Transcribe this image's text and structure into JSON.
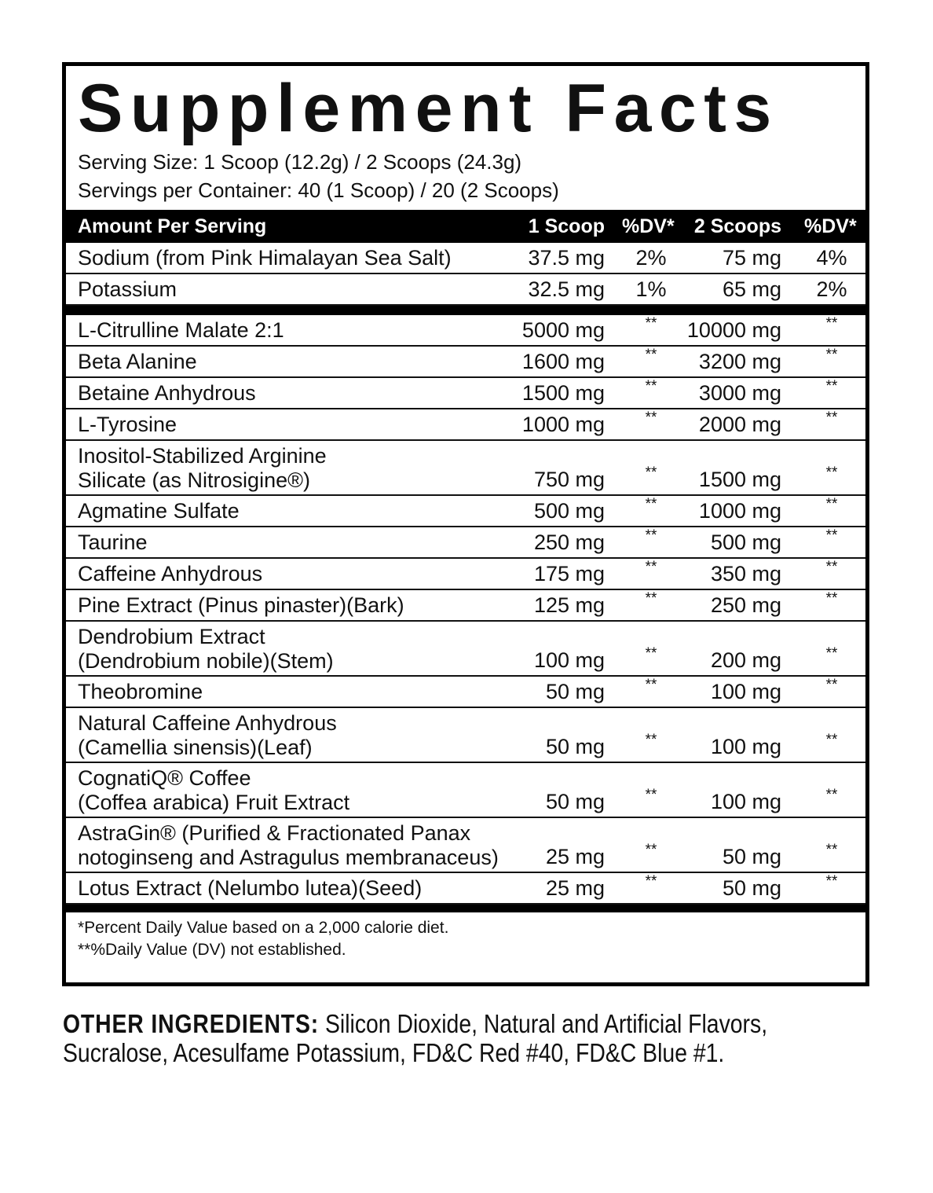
{
  "title": "Supplement Facts",
  "serving_size": "Serving Size: 1 Scoop (12.2g) / 2 Scoops (24.3g)",
  "servings_per_container": "Servings per Container: 40 (1 Scoop) / 20 (2 Scoops)",
  "header": {
    "amount": "Amount Per Serving",
    "col1": "1 Scoop",
    "dv1": "%DV*",
    "col2": "2 Scoops",
    "dv2": "%DV*"
  },
  "minerals": [
    {
      "name": [
        "Sodium (from Pink Himalayan Sea Salt)"
      ],
      "scoop1": "37.5 mg",
      "dv1": "2%",
      "scoop2": "75 mg",
      "dv2": "4%"
    },
    {
      "name": [
        "Potassium"
      ],
      "scoop1": "32.5 mg",
      "dv1": "1%",
      "scoop2": "65 mg",
      "dv2": "2%"
    }
  ],
  "ingredients": [
    {
      "name": [
        "L-Citrulline Malate 2:1"
      ],
      "scoop1": "5000 mg",
      "dv1": "**",
      "scoop2": "10000 mg",
      "dv2": "**"
    },
    {
      "name": [
        "Beta Alanine"
      ],
      "scoop1": "1600 mg",
      "dv1": "**",
      "scoop2": "3200 mg",
      "dv2": "**"
    },
    {
      "name": [
        "Betaine Anhydrous"
      ],
      "scoop1": "1500 mg",
      "dv1": "**",
      "scoop2": "3000 mg",
      "dv2": "**"
    },
    {
      "name": [
        "L-Tyrosine"
      ],
      "scoop1": "1000 mg",
      "dv1": "**",
      "scoop2": "2000 mg",
      "dv2": "**"
    },
    {
      "name": [
        "Inositol-Stabilized Arginine",
        "Silicate (as Nitrosigine®)"
      ],
      "scoop1": "750 mg",
      "dv1": "**",
      "scoop2": "1500 mg",
      "dv2": "**"
    },
    {
      "name": [
        "Agmatine Sulfate"
      ],
      "scoop1": "500 mg",
      "dv1": "**",
      "scoop2": "1000 mg",
      "dv2": "**"
    },
    {
      "name": [
        "Taurine"
      ],
      "scoop1": "250 mg",
      "dv1": "**",
      "scoop2": "500 mg",
      "dv2": "**"
    },
    {
      "name": [
        "Caffeine Anhydrous"
      ],
      "scoop1": "175 mg",
      "dv1": "**",
      "scoop2": "350 mg",
      "dv2": "**"
    },
    {
      "name": [
        "Pine Extract (Pinus pinaster)(Bark)"
      ],
      "scoop1": "125 mg",
      "dv1": "**",
      "scoop2": "250 mg",
      "dv2": "**"
    },
    {
      "name": [
        "Dendrobium Extract",
        "(Dendrobium nobile)(Stem)"
      ],
      "scoop1": "100 mg",
      "dv1": "**",
      "scoop2": "200 mg",
      "dv2": "**"
    },
    {
      "name": [
        "Theobromine"
      ],
      "scoop1": "50 mg",
      "dv1": "**",
      "scoop2": "100 mg",
      "dv2": "**"
    },
    {
      "name": [
        "Natural Caffeine Anhydrous",
        "(Camellia sinensis)(Leaf)"
      ],
      "scoop1": "50 mg",
      "dv1": "**",
      "scoop2": "100 mg",
      "dv2": "**"
    },
    {
      "name": [
        "CognatiQ® Coffee",
        "(Coffea arabica) Fruit Extract"
      ],
      "scoop1": "50 mg",
      "dv1": "**",
      "scoop2": "100 mg",
      "dv2": "**"
    },
    {
      "name": [
        "AstraGin® (Purified & Fractionated Panax",
        "notoginseng and Astragulus membranaceus)"
      ],
      "scoop1": "25 mg",
      "dv1": "**",
      "scoop2": "50 mg",
      "dv2": "**"
    },
    {
      "name": [
        "Lotus Extract (Nelumbo lutea)(Seed)"
      ],
      "scoop1": "25 mg",
      "dv1": "**",
      "scoop2": "50 mg",
      "dv2": "**"
    }
  ],
  "footnotes": [
    "*Percent Daily Value based on a 2,000 calorie diet.",
    "**%Daily Value (DV) not established."
  ],
  "other_ingredients": {
    "label": "OTHER INGREDIENTS:",
    "line1": " Silicon Dioxide, Natural and Artificial Flavors,",
    "line2": "Sucralose, Acesulfame Potassium, FD&C Red #40, FD&C Blue #1."
  }
}
